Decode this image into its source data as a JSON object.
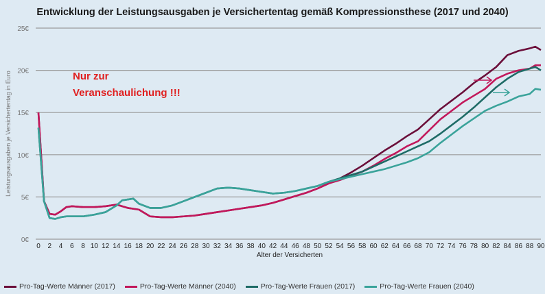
{
  "chart_data": {
    "type": "line",
    "title": "Entwicklung der Leistungsausgaben je Versichertentag gemäß Kompressionsthese (2017 und 2040)",
    "xlabel": "Alter der Versicherten",
    "ylabel": "Leistungsausgaben je Versichertentag in Euro",
    "xlim": [
      0,
      90
    ],
    "ylim": [
      0,
      25
    ],
    "xticks": [
      "0",
      "2",
      "4",
      "6",
      "8",
      "10",
      "12",
      "14",
      "16",
      "18",
      "20",
      "22",
      "24",
      "26",
      "28",
      "30",
      "32",
      "34",
      "36",
      "38",
      "40",
      "42",
      "44",
      "46",
      "48",
      "50",
      "52",
      "54",
      "56",
      "58",
      "60",
      "62",
      "64",
      "66",
      "68",
      "70",
      "72",
      "74",
      "76",
      "78",
      "80",
      "82",
      "84",
      "86",
      "88",
      "90"
    ],
    "yticks": [
      "0€",
      "5€",
      "10€",
      "15€",
      "20€",
      "25€"
    ],
    "grid": "horizontal",
    "legend_position": "bottom",
    "x": [
      0,
      1,
      2,
      3,
      4,
      5,
      6,
      8,
      10,
      12,
      14,
      15,
      16,
      17,
      18,
      20,
      22,
      24,
      26,
      28,
      30,
      32,
      34,
      36,
      38,
      40,
      42,
      44,
      46,
      48,
      50,
      52,
      54,
      56,
      58,
      60,
      62,
      64,
      66,
      68,
      70,
      72,
      74,
      76,
      78,
      80,
      82,
      84,
      86,
      88,
      89,
      90
    ],
    "series": [
      {
        "name": "Pro-Tag-Werte Männer (2017)",
        "color": "#6b0f3a",
        "values": [
          15,
          4.5,
          3.0,
          2.9,
          3.3,
          3.8,
          3.9,
          3.8,
          3.8,
          3.9,
          4.1,
          3.9,
          3.7,
          3.6,
          3.5,
          2.7,
          2.6,
          2.6,
          2.7,
          2.8,
          3.0,
          3.2,
          3.4,
          3.6,
          3.8,
          4.0,
          4.3,
          4.7,
          5.1,
          5.5,
          6.0,
          6.6,
          7.2,
          7.9,
          8.7,
          9.6,
          10.5,
          11.3,
          12.2,
          13.0,
          14.2,
          15.4,
          16.4,
          17.4,
          18.5,
          19.4,
          20.4,
          21.8,
          22.3,
          22.6,
          22.8,
          22.4
        ]
      },
      {
        "name": "Pro-Tag-Werte Männer (2040)",
        "color": "#c2185b",
        "values": [
          15,
          4.5,
          3.0,
          2.9,
          3.3,
          3.8,
          3.9,
          3.8,
          3.8,
          3.9,
          4.1,
          3.9,
          3.7,
          3.6,
          3.5,
          2.7,
          2.6,
          2.6,
          2.7,
          2.8,
          3.0,
          3.2,
          3.4,
          3.6,
          3.8,
          4.0,
          4.3,
          4.7,
          5.1,
          5.5,
          6.0,
          6.6,
          7.0,
          7.5,
          8.0,
          8.7,
          9.5,
          10.2,
          11.0,
          11.6,
          12.9,
          14.2,
          15.2,
          16.2,
          17.0,
          17.8,
          19.0,
          19.6,
          20.0,
          20.2,
          20.6,
          20.6
        ]
      },
      {
        "name": "Pro-Tag-Werte Frauen (2017)",
        "color": "#1e6b66",
        "values": [
          13.2,
          4.5,
          2.5,
          2.4,
          2.6,
          2.7,
          2.7,
          2.7,
          2.9,
          3.2,
          4.0,
          4.6,
          4.7,
          4.8,
          4.2,
          3.7,
          3.7,
          4.0,
          4.5,
          5.0,
          5.5,
          6.0,
          6.1,
          6.0,
          5.8,
          5.6,
          5.4,
          5.5,
          5.7,
          6.0,
          6.3,
          6.8,
          7.2,
          7.6,
          8.0,
          8.6,
          9.2,
          9.8,
          10.4,
          11.0,
          11.6,
          12.5,
          13.5,
          14.5,
          15.6,
          16.8,
          18.0,
          19.0,
          19.8,
          20.2,
          20.4,
          20.0
        ]
      },
      {
        "name": "Pro-Tag-Werte Frauen (2040)",
        "color": "#3aa39a",
        "values": [
          13.2,
          4.5,
          2.5,
          2.4,
          2.6,
          2.7,
          2.7,
          2.7,
          2.9,
          3.2,
          4.0,
          4.6,
          4.7,
          4.8,
          4.2,
          3.7,
          3.7,
          4.0,
          4.5,
          5.0,
          5.5,
          6.0,
          6.1,
          6.0,
          5.8,
          5.6,
          5.4,
          5.5,
          5.7,
          6.0,
          6.3,
          6.8,
          7.1,
          7.4,
          7.7,
          8.0,
          8.3,
          8.7,
          9.1,
          9.6,
          10.3,
          11.4,
          12.4,
          13.4,
          14.3,
          15.2,
          15.8,
          16.3,
          16.9,
          17.2,
          17.8,
          17.7
        ]
      }
    ],
    "annotations": [
      "Nur zur",
      "Veranschaulichung !!!"
    ],
    "arrows": [
      {
        "color": "#c2185b"
      },
      {
        "color": "#3aa39a"
      }
    ]
  }
}
